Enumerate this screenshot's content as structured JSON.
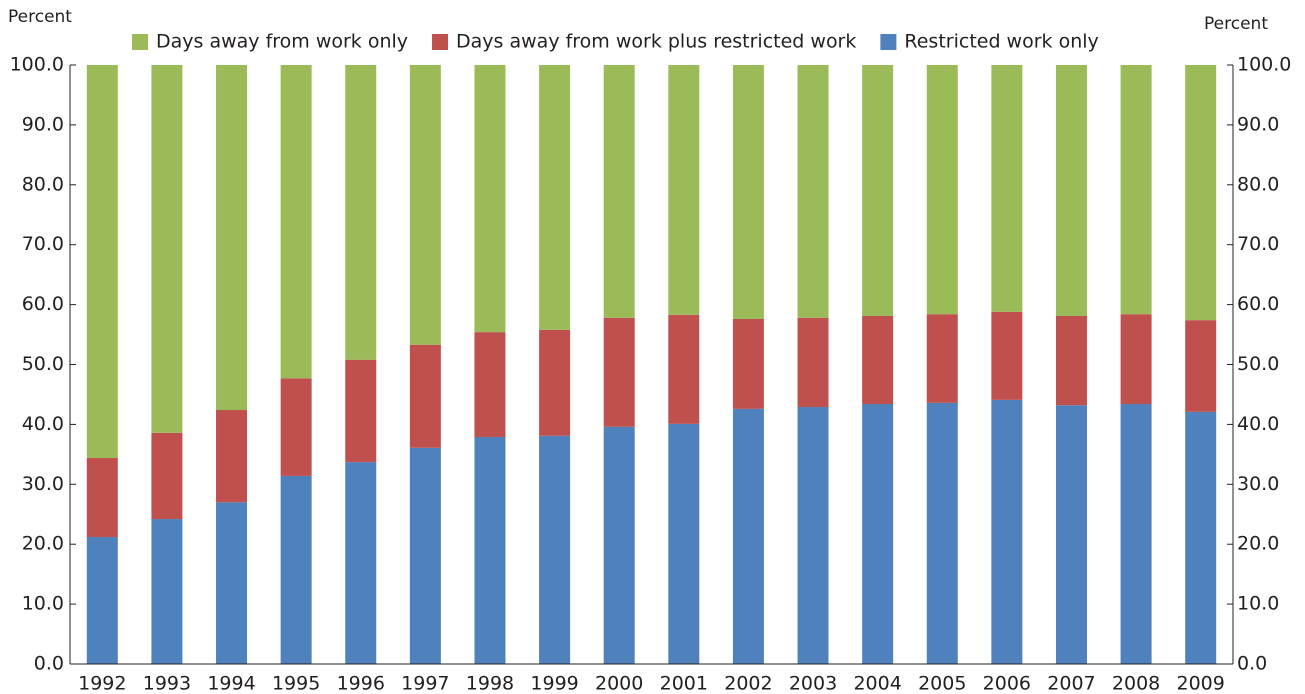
{
  "chart_data": {
    "type": "stacked-bar",
    "y_label": "Percent",
    "y2_label": "Percent",
    "categories": [
      "1992",
      "1993",
      "1994",
      "1995",
      "1996",
      "1997",
      "1998",
      "1999",
      "2000",
      "2001",
      "2002",
      "2003",
      "2004",
      "2005",
      "2006",
      "2007",
      "2008",
      "2009"
    ],
    "series": [
      {
        "name": "Days away from work only",
        "color": "#9bbb59",
        "values": [
          65.6,
          61.4,
          57.6,
          52.3,
          49.2,
          46.7,
          44.6,
          44.2,
          42.2,
          41.7,
          42.4,
          42.2,
          41.9,
          41.6,
          41.2,
          41.9,
          41.6,
          42.6
        ]
      },
      {
        "name": "Days away from work plus restricted work",
        "color": "#c0504d",
        "values": [
          13.2,
          14.4,
          15.4,
          16.3,
          17.1,
          17.2,
          17.5,
          17.7,
          18.2,
          18.2,
          15.0,
          14.9,
          14.7,
          14.8,
          14.7,
          14.9,
          15.0,
          15.3
        ]
      },
      {
        "name": "Restricted work only",
        "color": "#4f81bd",
        "values": [
          21.2,
          24.2,
          27.0,
          31.4,
          33.7,
          36.1,
          37.9,
          38.1,
          39.6,
          40.1,
          42.6,
          42.9,
          43.4,
          43.6,
          44.1,
          43.2,
          43.4,
          42.1
        ]
      }
    ],
    "ylim": [
      0,
      100
    ],
    "yticks": [
      {
        "value": 0,
        "label": "0.0"
      },
      {
        "value": 10,
        "label": "10.0"
      },
      {
        "value": 20,
        "label": "20.0"
      },
      {
        "value": 30,
        "label": "30.0"
      },
      {
        "value": 40,
        "label": "40.0"
      },
      {
        "value": 50,
        "label": "50.0"
      },
      {
        "value": 60,
        "label": "60.0"
      },
      {
        "value": 70,
        "label": "70.0"
      },
      {
        "value": 80,
        "label": "80.0"
      },
      {
        "value": 90,
        "label": "90.0"
      },
      {
        "value": 100,
        "label": "100.0"
      }
    ],
    "y2lim": [
      0,
      100
    ],
    "y2ticks": [
      {
        "value": 0,
        "label": "0.0"
      },
      {
        "value": 10,
        "label": "10.0"
      },
      {
        "value": 20,
        "label": "20.0"
      },
      {
        "value": 30,
        "label": "30.0"
      },
      {
        "value": 40,
        "label": "40.0"
      },
      {
        "value": 50,
        "label": "50.0"
      },
      {
        "value": 60,
        "label": "60.0"
      },
      {
        "value": 70,
        "label": "70.0"
      },
      {
        "value": 80,
        "label": "80.0"
      },
      {
        "value": 90,
        "label": "90.0"
      },
      {
        "value": 100,
        "label": "100.0"
      }
    ],
    "legend": "top"
  }
}
